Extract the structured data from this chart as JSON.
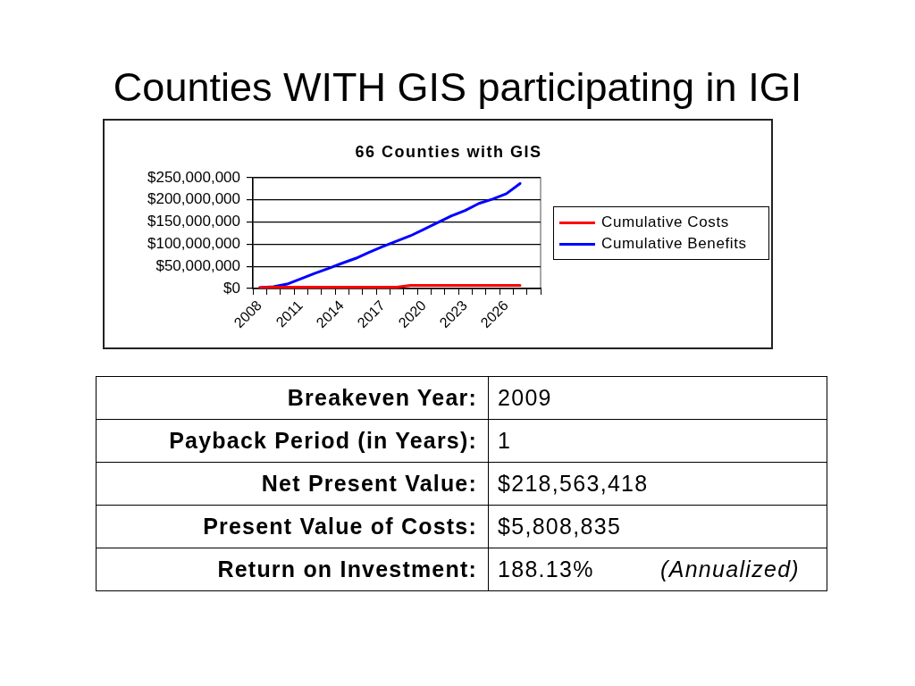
{
  "chart_data": [
    {
      "type": "line",
      "title": "Counties WITH GIS participating in IGI",
      "subtitle": "66 Counties with GIS",
      "categories": [
        "2008",
        null,
        null,
        "2011",
        null,
        null,
        "2014",
        null,
        null,
        "2017",
        null,
        null,
        "2020",
        null,
        null,
        "2023",
        null,
        null,
        "2026",
        null,
        null
      ],
      "series": [
        {
          "name": "Cumulative Costs",
          "color": "#ff0000",
          "values": [
            2000000,
            3000000,
            3000000,
            3000000,
            3000000,
            3000000,
            3000000,
            3000000,
            3000000,
            3000000,
            3000000,
            7000000,
            7000000,
            7000000,
            7000000,
            7000000,
            7000000,
            7000000,
            7000000,
            7000000,
            null
          ]
        },
        {
          "name": "Cumulative Benefits",
          "color": "#0000ff",
          "values": [
            2000000,
            4000000,
            10000000,
            22000000,
            34000000,
            45000000,
            57000000,
            68000000,
            82000000,
            95000000,
            107000000,
            119000000,
            134000000,
            149000000,
            164000000,
            176000000,
            192000000,
            202000000,
            214000000,
            237000000,
            null
          ]
        }
      ],
      "ylim": [
        0,
        250000000
      ],
      "yticks": [
        {
          "value": 0,
          "label": "$0"
        },
        {
          "value": 50000000,
          "label": "$50,000,000"
        },
        {
          "value": 100000000,
          "label": "$100,000,000"
        },
        {
          "value": 150000000,
          "label": "$150,000,000"
        },
        {
          "value": 200000000,
          "label": "$200,000,000"
        },
        {
          "value": 250000000,
          "label": "$250,000,000"
        }
      ],
      "grid": "y",
      "legend": "right",
      "marker": "none",
      "line_style": "solid"
    },
    {
      "type": "other",
      "annotations": [
        "Breakeven Year:",
        "2009",
        "Payback Period (in Years):",
        "1",
        "Net Present Value:",
        "$218,563,418",
        "Present Value of Costs:",
        "$5,808,835",
        "Return on Investment:",
        "188.13%",
        "(Annualized)"
      ]
    }
  ]
}
